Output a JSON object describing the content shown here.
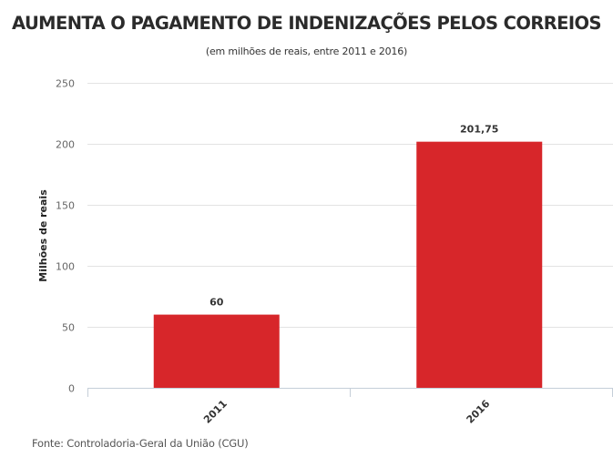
{
  "chart_data": {
    "type": "bar",
    "title": "AUMENTA O PAGAMENTO DE INDENIZAÇÕES PELOS CORREIOS",
    "subtitle": "(em milhões de reais, entre 2011 e 2016)",
    "xlabel": "",
    "ylabel": "Milhões de reais",
    "categories": [
      "2011",
      "2016"
    ],
    "values": [
      60,
      201.75
    ],
    "data_labels": [
      "60",
      "201,75"
    ],
    "ylim": [
      0,
      250
    ],
    "yticks": [
      0,
      50,
      100,
      150,
      200,
      250
    ],
    "ytick_labels": [
      "0",
      "50",
      "100",
      "150",
      "200",
      "250"
    ],
    "grid": true,
    "bar_color": "#d7262a",
    "source": "Fonte: Controladoria-Geral da União (CGU)"
  }
}
